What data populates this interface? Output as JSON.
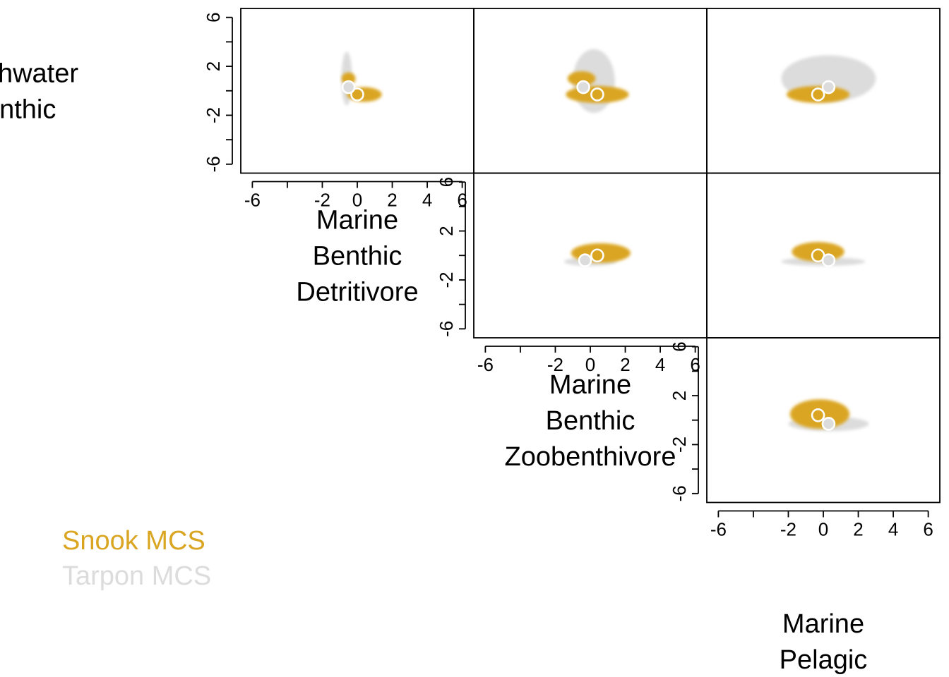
{
  "chart_data": {
    "type": "scatter",
    "layout": "pairs-upper-triangle",
    "variables": [
      {
        "label_lines": [
          "Freshwater",
          "Benthic"
        ]
      },
      {
        "label_lines": [
          "Marine",
          "Benthic",
          "Detritivore"
        ]
      },
      {
        "label_lines": [
          "Marine",
          "Benthic",
          "Zoobenthivore"
        ]
      },
      {
        "label_lines": [
          "Marine",
          "Pelagic"
        ]
      }
    ],
    "axis_range": [
      -6.5,
      6.5
    ],
    "x_ticks": [
      -6,
      -4,
      -2,
      0,
      2,
      4,
      6
    ],
    "x_tick_labels": [
      "-6",
      "",
      "-2",
      "0",
      "2",
      "4",
      "6"
    ],
    "y_ticks": [
      -6,
      -4,
      -2,
      0,
      2,
      4,
      6
    ],
    "y_tick_labels": [
      "-6",
      "",
      "-2",
      "",
      "2",
      "",
      "6"
    ],
    "grid": false,
    "legend_position": "bottom-left",
    "series": [
      {
        "name": "Snook MCS",
        "color": "#DAA520"
      },
      {
        "name": "Tarpon MCS",
        "color": "#DCDCDC"
      }
    ],
    "draw_order": [
      "Tarpon MCS",
      "Snook MCS"
    ],
    "panels": [
      {
        "row": 0,
        "col": 1,
        "y_axis": true,
        "x_axis": true,
        "clouds": {
          "Tarpon MCS": [
            {
              "cx": -0.6,
              "cy": 1.0,
              "rx": 0.3,
              "ry": 2.2
            }
          ],
          "Snook MCS": [
            {
              "cx": 0.4,
              "cy": -0.3,
              "rx": 1.0,
              "ry": 0.6
            },
            {
              "cx": -0.5,
              "cy": 1.0,
              "rx": 0.4,
              "ry": 0.5
            }
          ]
        },
        "centroids": {
          "Snook MCS": [
            0.0,
            -0.3
          ],
          "Tarpon MCS": [
            -0.5,
            0.3
          ]
        }
      },
      {
        "row": 0,
        "col": 2,
        "y_axis": false,
        "x_axis": false,
        "clouds": {
          "Tarpon MCS": [
            {
              "cx": 0.2,
              "cy": 0.8,
              "rx": 1.2,
              "ry": 2.6
            }
          ],
          "Snook MCS": [
            {
              "cx": 0.4,
              "cy": -0.3,
              "rx": 1.8,
              "ry": 0.7
            },
            {
              "cx": -0.5,
              "cy": 1.0,
              "rx": 0.8,
              "ry": 0.6
            }
          ]
        },
        "centroids": {
          "Snook MCS": [
            0.4,
            -0.3
          ],
          "Tarpon MCS": [
            -0.4,
            0.3
          ]
        }
      },
      {
        "row": 0,
        "col": 3,
        "y_axis": false,
        "x_axis": false,
        "clouds": {
          "Tarpon MCS": [
            {
              "cx": 0.3,
              "cy": 1.0,
              "rx": 2.7,
              "ry": 1.9
            }
          ],
          "Snook MCS": [
            {
              "cx": -0.3,
              "cy": -0.3,
              "rx": 1.8,
              "ry": 0.7
            }
          ]
        },
        "centroids": {
          "Snook MCS": [
            -0.3,
            -0.3
          ],
          "Tarpon MCS": [
            0.3,
            0.3
          ]
        }
      },
      {
        "row": 1,
        "col": 2,
        "y_axis": true,
        "x_axis": true,
        "clouds": {
          "Tarpon MCS": [
            {
              "cx": 0.0,
              "cy": -0.5,
              "rx": 1.5,
              "ry": 0.35
            }
          ],
          "Snook MCS": [
            {
              "cx": 0.6,
              "cy": 0.2,
              "rx": 1.7,
              "ry": 0.8
            }
          ]
        },
        "centroids": {
          "Snook MCS": [
            0.4,
            0.0
          ],
          "Tarpon MCS": [
            -0.3,
            -0.4
          ]
        }
      },
      {
        "row": 1,
        "col": 3,
        "y_axis": false,
        "x_axis": false,
        "clouds": {
          "Tarpon MCS": [
            {
              "cx": 0.0,
              "cy": -0.5,
              "rx": 2.4,
              "ry": 0.35
            }
          ],
          "Snook MCS": [
            {
              "cx": -0.3,
              "cy": 0.3,
              "rx": 1.5,
              "ry": 0.8
            }
          ]
        },
        "centroids": {
          "Snook MCS": [
            -0.3,
            0.0
          ],
          "Tarpon MCS": [
            0.3,
            -0.4
          ]
        }
      },
      {
        "row": 2,
        "col": 3,
        "y_axis": true,
        "x_axis": true,
        "clouds": {
          "Tarpon MCS": [
            {
              "cx": 0.3,
              "cy": -0.3,
              "rx": 2.3,
              "ry": 0.6
            }
          ],
          "Snook MCS": [
            {
              "cx": -0.2,
              "cy": 0.5,
              "rx": 1.7,
              "ry": 1.2
            }
          ]
        },
        "centroids": {
          "Snook MCS": [
            -0.3,
            0.4
          ],
          "Tarpon MCS": [
            0.3,
            -0.3
          ]
        }
      }
    ]
  }
}
